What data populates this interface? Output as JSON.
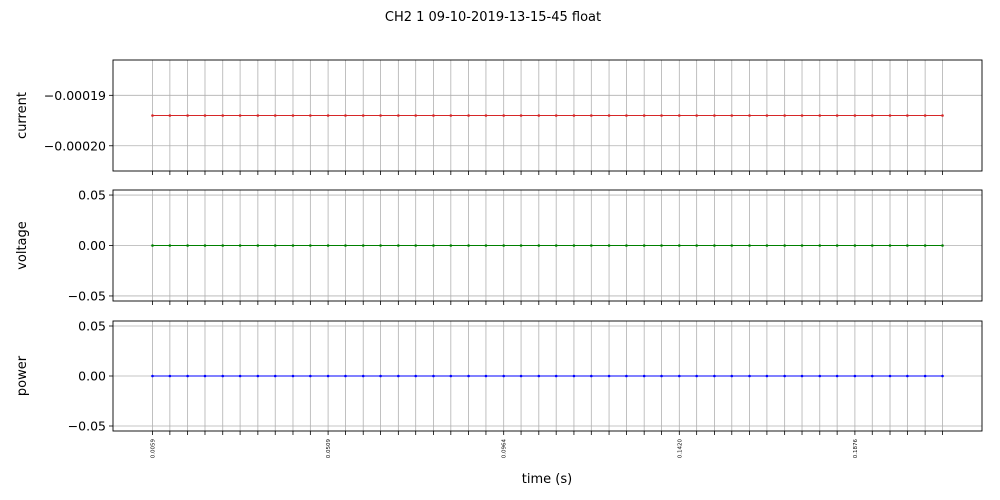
{
  "figure": {
    "title": "CH2   1   09-10-2019-13-15-45   float"
  },
  "chart_data": {
    "type": "line",
    "title": "CH2   1   09-10-2019-13-15-45   float",
    "xlabel": "time (s)",
    "shared_x": true,
    "grid": true,
    "x": [
      0.0059,
      0.0104,
      0.015,
      0.0195,
      0.0241,
      0.0286,
      0.0332,
      0.0377,
      0.0423,
      0.0468,
      0.0514,
      0.0559,
      0.0605,
      0.065,
      0.0696,
      0.0741,
      0.0787,
      0.0832,
      0.0878,
      0.0923,
      0.0969,
      0.1014,
      0.106,
      0.1105,
      0.1151,
      0.1196,
      0.1242,
      0.1287,
      0.1333,
      0.1378,
      0.1424,
      0.1469,
      0.1515,
      0.156,
      0.1606,
      0.1651,
      0.1697,
      0.1742,
      0.1788,
      0.1833,
      0.1879,
      0.1924,
      0.197,
      0.2015,
      0.2061,
      0.2106
    ],
    "xticklabels": [
      "0.0059",
      "",
      "",
      "",
      "",
      "",
      "",
      "",
      "",
      "",
      "0.0509",
      "",
      "",
      "",
      "",
      "",
      "",
      "",
      "",
      "",
      "0.0964",
      "",
      "",
      "",
      "",
      "",
      "",
      "",
      "",
      "",
      "0.1420",
      "",
      "",
      "",
      "",
      "",
      "",
      "",
      "",
      "",
      "0.1876",
      "",
      "",
      "",
      "",
      ""
    ],
    "panels": [
      {
        "ylabel": "current",
        "color": "#d62728",
        "ylim": [
          -0.000205,
          -0.000183
        ],
        "yticks": [
          -0.00019,
          -0.0002
        ],
        "yticklabels": [
          "−0.00019",
          "−0.00020"
        ],
        "value": -0.000194
      },
      {
        "ylabel": "voltage",
        "color": "#008000",
        "ylim": [
          -0.055,
          0.055
        ],
        "yticks": [
          0.05,
          0,
          -0.05
        ],
        "yticklabels": [
          "0.05",
          "0.00",
          "−0.05"
        ],
        "value": 0.0
      },
      {
        "ylabel": "power",
        "color": "#0000ff",
        "ylim": [
          -0.055,
          0.055
        ],
        "yticks": [
          0.05,
          0,
          -0.05
        ],
        "yticklabels": [
          "0.05",
          "0.00",
          "−0.05"
        ],
        "value": 0.0
      }
    ]
  }
}
